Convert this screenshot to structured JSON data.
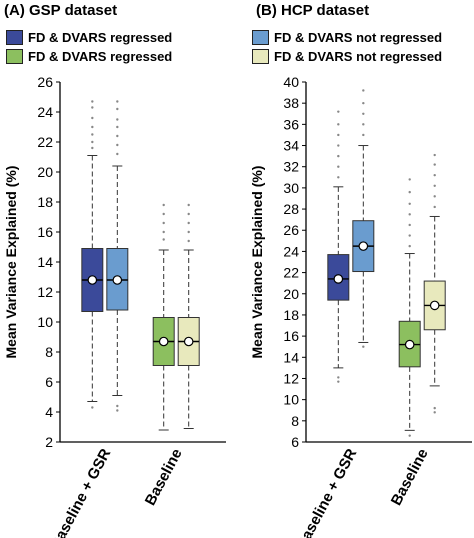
{
  "panels": {
    "a_title": "(A) GSP dataset",
    "b_title": "(B) HCP dataset"
  },
  "legend": [
    {
      "label": "FD & DVARS regressed",
      "color": "#3b4a9a"
    },
    {
      "label": "FD & DVARS not regressed",
      "color": "#6a9ccf"
    },
    {
      "label": "FD & DVARS regressed",
      "color": "#8cbf5f"
    },
    {
      "label": "FD & DVARS not regressed",
      "color": "#e8e9bd"
    }
  ],
  "chart_data": [
    {
      "type": "box",
      "ylabel": "Mean Variance Explained (%)",
      "ylim": [
        2,
        26
      ],
      "yticks": [
        "2",
        "4",
        "6",
        "8",
        "10",
        "12",
        "14",
        "16",
        "18",
        "20",
        "22",
        "24",
        "26"
      ],
      "categories": [
        "Baseline + GSR",
        "Baseline"
      ],
      "boxes": [
        {
          "category": "Baseline + GSR",
          "series": "FD & DVARS regressed",
          "color": "#3b4a9a",
          "whisker_low": 4.7,
          "q1": 10.7,
          "median": 12.8,
          "q3": 14.9,
          "whisker_high": 21.1,
          "mean": 12.8,
          "outliers": [
            4.3,
            21.6,
            22.0,
            22.5,
            23.0,
            23.6,
            24.3,
            24.7
          ]
        },
        {
          "category": "Baseline + GSR",
          "series": "FD & DVARS not regressed",
          "color": "#6a9ccf",
          "whisker_low": 5.1,
          "q1": 10.8,
          "median": 12.8,
          "q3": 14.9,
          "whisker_high": 20.4,
          "mean": 12.8,
          "outliers": [
            4.1,
            4.4,
            21.2,
            21.8,
            22.4,
            23.0,
            23.5,
            24.2,
            24.7
          ]
        },
        {
          "category": "Baseline",
          "series": "FD & DVARS regressed",
          "color": "#8cbf5f",
          "whisker_low": 2.8,
          "q1": 7.1,
          "median": 8.7,
          "q3": 10.3,
          "whisker_high": 14.8,
          "mean": 8.7,
          "outliers": [
            15.5,
            16.0,
            16.6,
            17.2,
            17.8
          ]
        },
        {
          "category": "Baseline",
          "series": "FD & DVARS not regressed",
          "color": "#e8e9bd",
          "whisker_low": 2.9,
          "q1": 7.1,
          "median": 8.7,
          "q3": 10.3,
          "whisker_high": 14.8,
          "mean": 8.7,
          "outliers": [
            15.4,
            16.0,
            16.6,
            17.2,
            17.8
          ]
        }
      ]
    },
    {
      "type": "box",
      "ylabel": "Mean Variance Explained (%)",
      "ylim": [
        6,
        40
      ],
      "yticks": [
        "6",
        "8",
        "10",
        "12",
        "14",
        "16",
        "18",
        "20",
        "22",
        "24",
        "26",
        "28",
        "30",
        "32",
        "34",
        "36",
        "38",
        "40"
      ],
      "categories": [
        "Baseline + GSR",
        "Baseline"
      ],
      "boxes": [
        {
          "category": "Baseline + GSR",
          "series": "FD & DVARS regressed",
          "color": "#3b4a9a",
          "whisker_low": 13.0,
          "q1": 19.4,
          "median": 21.4,
          "q3": 23.7,
          "whisker_high": 30.1,
          "mean": 21.4,
          "outliers": [
            11.7,
            12.1,
            31.0,
            32.0,
            33.0,
            34.0,
            35.0,
            36.0,
            37.2
          ]
        },
        {
          "category": "Baseline + GSR",
          "series": "FD & DVARS not regressed",
          "color": "#6a9ccf",
          "whisker_low": 15.4,
          "q1": 22.1,
          "median": 24.5,
          "q3": 26.9,
          "whisker_high": 34.0,
          "mean": 24.5,
          "outliers": [
            15.0,
            35.0,
            36.0,
            37.0,
            38.0,
            39.2
          ]
        },
        {
          "category": "Baseline",
          "series": "FD & DVARS regressed",
          "color": "#8cbf5f",
          "whisker_low": 7.1,
          "q1": 13.1,
          "median": 15.2,
          "q3": 17.4,
          "whisker_high": 23.8,
          "mean": 15.2,
          "outliers": [
            6.6,
            24.5,
            25.5,
            26.5,
            27.5,
            28.5,
            29.6,
            30.8
          ]
        },
        {
          "category": "Baseline",
          "series": "FD & DVARS not regressed",
          "color": "#e8e9bd",
          "whisker_low": 11.3,
          "q1": 16.6,
          "median": 18.9,
          "q3": 21.2,
          "whisker_high": 27.3,
          "mean": 18.9,
          "outliers": [
            8.8,
            9.2,
            28.2,
            29.2,
            30.2,
            31.2,
            32.2,
            33.1
          ]
        }
      ]
    }
  ]
}
